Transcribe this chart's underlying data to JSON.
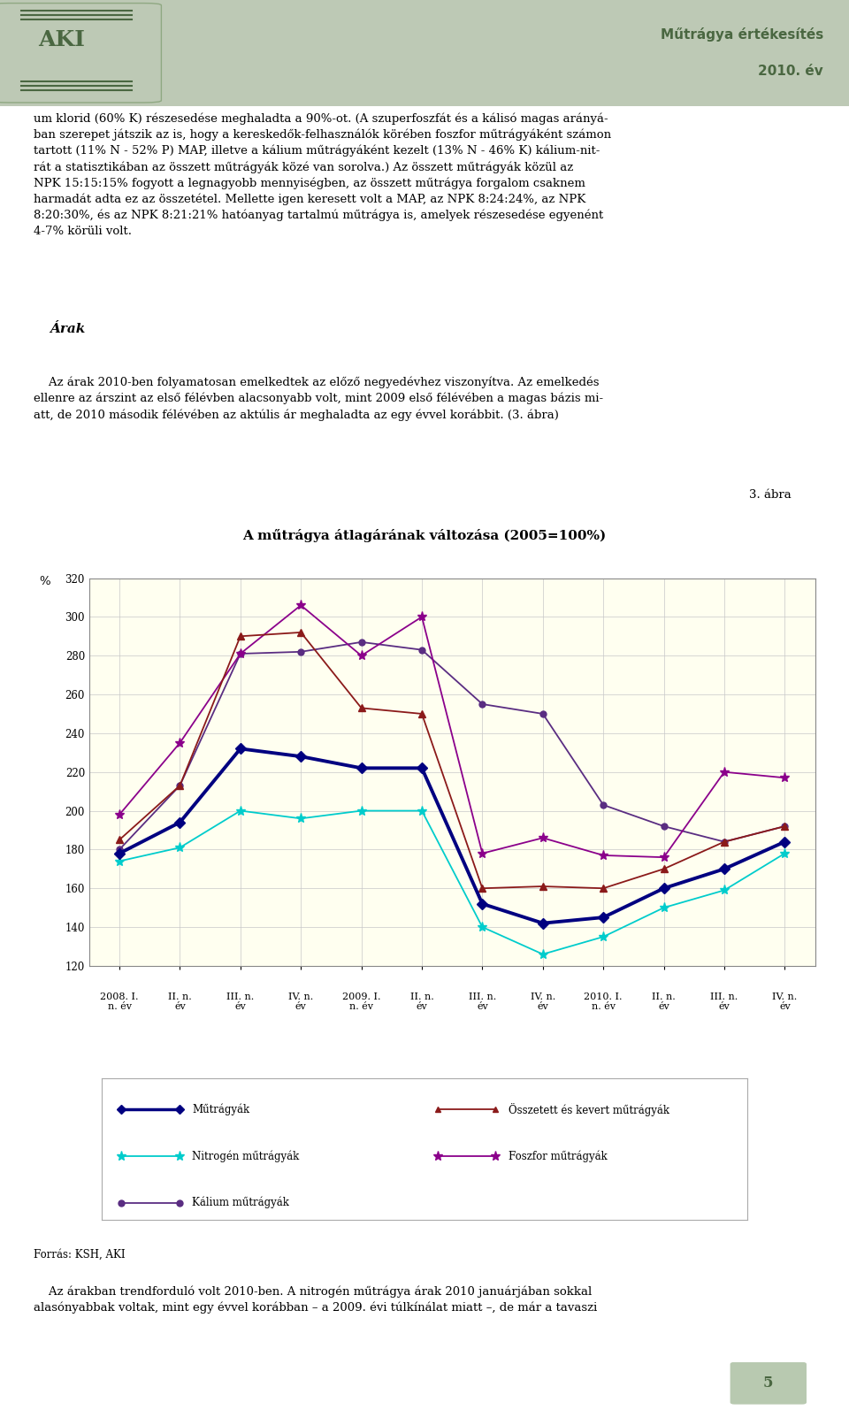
{
  "title": "A műtrágya átlagárának változása (2005=100%)",
  "ylabel": "%",
  "ylim": [
    120,
    320
  ],
  "yticks": [
    120,
    140,
    160,
    180,
    200,
    220,
    240,
    260,
    280,
    300,
    320
  ],
  "x_labels": [
    "2008. I.\nn. év",
    "II. n.\név",
    "III. n.\név",
    "IV. n.\név",
    "2009. I.\nn. év",
    "II. n.\név",
    "III. n.\név",
    "IV. n.\név",
    "2010. I.\nn. év",
    "II. n.\név",
    "III. n.\név",
    "IV. n.\név"
  ],
  "mutragyak": [
    178,
    194,
    232,
    228,
    222,
    222,
    152,
    142,
    145,
    160,
    170,
    184
  ],
  "osszetett": [
    185,
    213,
    290,
    292,
    253,
    250,
    160,
    161,
    160,
    170,
    184,
    192
  ],
  "nitrogen": [
    174,
    181,
    200,
    196,
    200,
    200,
    140,
    126,
    135,
    150,
    159,
    178
  ],
  "foszfor": [
    198,
    235,
    281,
    306,
    280,
    300,
    178,
    186,
    177,
    176,
    220,
    217
  ],
  "kalium": [
    180,
    213,
    281,
    282,
    287,
    283,
    255,
    250,
    203,
    192,
    184,
    192
  ],
  "color_mutragyak": "#000080",
  "color_osszetett": "#8B1A1A",
  "color_nitrogen": "#00AA44",
  "color_foszfor": "#8B008B",
  "color_kalium": "#5A2D82",
  "header_bg": "#B8C9B0",
  "header_text_color": "#4A6741",
  "page_bg": "#FFFFFF",
  "chart_bg": "#FFFFF0",
  "body_text_1": "um klorid (60% K) részesedése meghaladta a 90%-ot. (A szuperfoszfát és a kálisó magas arányá-\nban szerepet játszik az is, hogy a kereskedők-felhasználók körében foszfor műtrágyáként számon\ntartott (11% N - 52% P) MAP, illetve a kálium műtrágyáként kezelt (13% N - 46% K) kálium-nit-\nrát a statisztikában az összett műtrágyák közé van sorolva.) Az összett műtrágyák közül az\nNPK 15:15:15% fogyott a legnagyobb mennyiségben, az összett műtrágya forgalom csaknem\nharmadát adta ez az összetétel. Mellette igen keresett volt a MAP, az NPK 8:24:24%, az NPK\n8:20:30%, és az NPK 8:21:21% hatóanyag tartalmú műtrágya is, amelyek részesedése egyenént\n4-7% körüli volt.",
  "section_arak": "Árak",
  "body_text_2": "    Az árak 2010-ben folyamatosan emelkedtek az előző negyedévhez viszonyítva. Az emelkedés\nellenre az árszint az első félévben alacsonyabb volt, mint 2009 első félévében a magas bázis mi-\natt, de 2010 második félévében az aktúlis ár meghaladta az egy évvel korábbit. (3. ábra)",
  "fig_ref": "3. ábra",
  "source": "Forrás: KSH, AKI",
  "body_text_3": "    Az árakban trendforduló volt 2010-ben. A nitrogén műtrágya árak 2010 januárjában sokkal\nalasónyabbak voltak, mint egy évvel korábban – a 2009. évi túlkínálat miatt –, de már a tavaszi",
  "header_title_line1": "Műtrágya értékesítés",
  "header_title_line2": "2010. év",
  "page_num": "5"
}
